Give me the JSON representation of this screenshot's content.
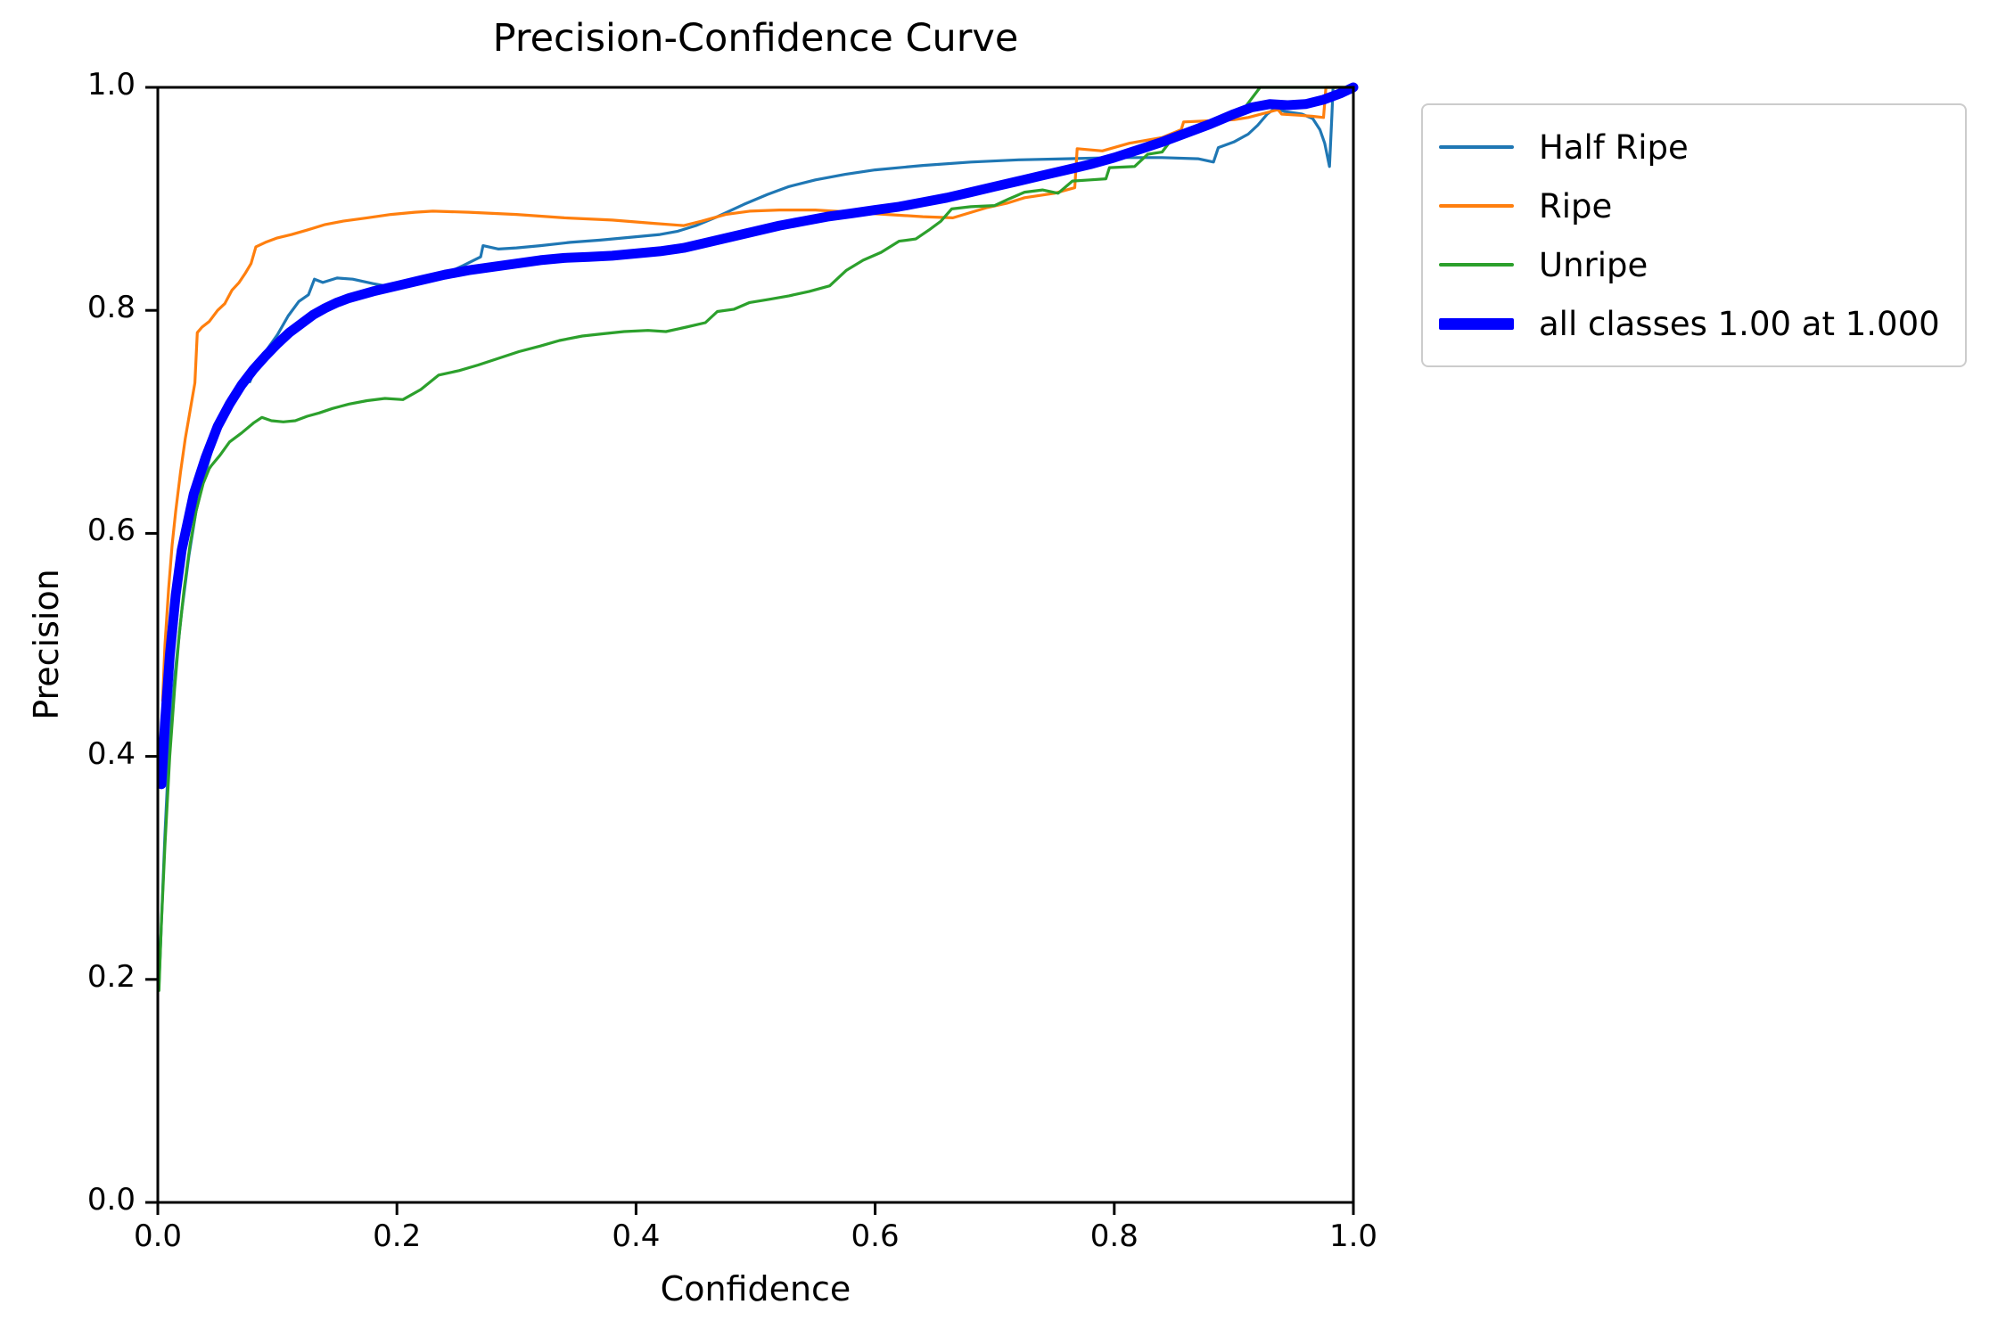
{
  "colors": {
    "half_ripe": "#1f77b4",
    "ripe": "#ff7f0e",
    "unripe": "#2ca02c",
    "all_classes": "#0000ff",
    "spine": "#000000",
    "legend_border": "#cccccc",
    "background": "#ffffff"
  },
  "chart_data": {
    "type": "line",
    "title": "Precision-Confidence Curve",
    "xlabel": "Confidence",
    "ylabel": "Precision",
    "xlim": [
      0.0,
      1.0
    ],
    "ylim": [
      0.0,
      1.0
    ],
    "grid": false,
    "x_tick_values": [
      0.0,
      0.2,
      0.4,
      0.6,
      0.8,
      1.0
    ],
    "x_tick_labels": [
      "0.0",
      "0.2",
      "0.4",
      "0.6",
      "0.8",
      "1.0"
    ],
    "y_tick_values": [
      0.0,
      0.2,
      0.4,
      0.6,
      0.8,
      1.0
    ],
    "y_tick_labels": [
      "0.0",
      "0.2",
      "0.4",
      "0.6",
      "0.8",
      "1.0"
    ],
    "legend": {
      "position": "upper-right-outside",
      "entries": [
        {
          "label": "Half Ripe",
          "color": "#1f77b4",
          "thick": false
        },
        {
          "label": "Ripe",
          "color": "#ff7f0e",
          "thick": false
        },
        {
          "label": "Unripe",
          "color": "#2ca02c",
          "thick": false
        },
        {
          "label": "all classes 1.00 at 1.000",
          "color": "#0000ff",
          "thick": true
        }
      ]
    },
    "series": [
      {
        "id": "half-ripe",
        "name": "Half Ripe",
        "color": "#1f77b4",
        "line_width": 3.2,
        "points": [
          [
            0.001,
            0.195
          ],
          [
            0.003,
            0.25
          ],
          [
            0.006,
            0.33
          ],
          [
            0.01,
            0.42
          ],
          [
            0.014,
            0.47
          ],
          [
            0.02,
            0.53
          ],
          [
            0.026,
            0.58
          ],
          [
            0.032,
            0.62
          ],
          [
            0.04,
            0.655
          ],
          [
            0.048,
            0.685
          ],
          [
            0.056,
            0.708
          ],
          [
            0.064,
            0.727
          ],
          [
            0.07,
            0.738
          ],
          [
            0.074,
            0.742
          ],
          [
            0.077,
            0.736
          ],
          [
            0.082,
            0.75
          ],
          [
            0.09,
            0.763
          ],
          [
            0.1,
            0.778
          ],
          [
            0.109,
            0.795
          ],
          [
            0.118,
            0.808
          ],
          [
            0.126,
            0.814
          ],
          [
            0.131,
            0.828
          ],
          [
            0.138,
            0.825
          ],
          [
            0.15,
            0.829
          ],
          [
            0.163,
            0.828
          ],
          [
            0.18,
            0.824
          ],
          [
            0.2,
            0.82
          ],
          [
            0.215,
            0.823
          ],
          [
            0.235,
            0.83
          ],
          [
            0.255,
            0.84
          ],
          [
            0.27,
            0.848
          ],
          [
            0.272,
            0.858
          ],
          [
            0.285,
            0.855
          ],
          [
            0.3,
            0.856
          ],
          [
            0.32,
            0.858
          ],
          [
            0.345,
            0.861
          ],
          [
            0.37,
            0.863
          ],
          [
            0.4,
            0.866
          ],
          [
            0.42,
            0.868
          ],
          [
            0.435,
            0.871
          ],
          [
            0.45,
            0.876
          ],
          [
            0.468,
            0.884
          ],
          [
            0.49,
            0.895
          ],
          [
            0.51,
            0.904
          ],
          [
            0.528,
            0.911
          ],
          [
            0.55,
            0.917
          ],
          [
            0.575,
            0.922
          ],
          [
            0.6,
            0.926
          ],
          [
            0.64,
            0.93
          ],
          [
            0.68,
            0.933
          ],
          [
            0.72,
            0.935
          ],
          [
            0.76,
            0.936
          ],
          [
            0.8,
            0.937
          ],
          [
            0.84,
            0.937
          ],
          [
            0.87,
            0.936
          ],
          [
            0.883,
            0.933
          ],
          [
            0.887,
            0.946
          ],
          [
            0.9,
            0.951
          ],
          [
            0.912,
            0.958
          ],
          [
            0.92,
            0.966
          ],
          [
            0.928,
            0.976
          ],
          [
            0.934,
            0.981
          ],
          [
            0.944,
            0.978
          ],
          [
            0.957,
            0.976
          ],
          [
            0.966,
            0.972
          ],
          [
            0.972,
            0.962
          ],
          [
            0.976,
            0.95
          ],
          [
            0.98,
            0.929
          ],
          [
            0.982,
            0.975
          ],
          [
            0.983,
            1.0
          ],
          [
            1.0,
            1.0
          ]
        ]
      },
      {
        "id": "ripe",
        "name": "Ripe",
        "color": "#ff7f0e",
        "line_width": 3.2,
        "points": [
          [
            0.004,
            0.45
          ],
          [
            0.006,
            0.5
          ],
          [
            0.009,
            0.55
          ],
          [
            0.012,
            0.59
          ],
          [
            0.015,
            0.62
          ],
          [
            0.019,
            0.655
          ],
          [
            0.023,
            0.685
          ],
          [
            0.027,
            0.71
          ],
          [
            0.031,
            0.735
          ],
          [
            0.033,
            0.78
          ],
          [
            0.037,
            0.785
          ],
          [
            0.043,
            0.79
          ],
          [
            0.05,
            0.8
          ],
          [
            0.056,
            0.806
          ],
          [
            0.062,
            0.818
          ],
          [
            0.068,
            0.825
          ],
          [
            0.073,
            0.833
          ],
          [
            0.078,
            0.842
          ],
          [
            0.082,
            0.857
          ],
          [
            0.09,
            0.861
          ],
          [
            0.1,
            0.865
          ],
          [
            0.112,
            0.868
          ],
          [
            0.125,
            0.872
          ],
          [
            0.14,
            0.877
          ],
          [
            0.155,
            0.88
          ],
          [
            0.175,
            0.883
          ],
          [
            0.195,
            0.886
          ],
          [
            0.215,
            0.888
          ],
          [
            0.23,
            0.889
          ],
          [
            0.26,
            0.888
          ],
          [
            0.3,
            0.886
          ],
          [
            0.34,
            0.883
          ],
          [
            0.38,
            0.881
          ],
          [
            0.415,
            0.878
          ],
          [
            0.44,
            0.876
          ],
          [
            0.455,
            0.88
          ],
          [
            0.475,
            0.886
          ],
          [
            0.495,
            0.889
          ],
          [
            0.52,
            0.89
          ],
          [
            0.55,
            0.89
          ],
          [
            0.58,
            0.888
          ],
          [
            0.61,
            0.886
          ],
          [
            0.64,
            0.884
          ],
          [
            0.665,
            0.883
          ],
          [
            0.693,
            0.892
          ],
          [
            0.71,
            0.896
          ],
          [
            0.725,
            0.901
          ],
          [
            0.75,
            0.905
          ],
          [
            0.767,
            0.91
          ],
          [
            0.769,
            0.945
          ],
          [
            0.79,
            0.943
          ],
          [
            0.813,
            0.95
          ],
          [
            0.84,
            0.955
          ],
          [
            0.856,
            0.962
          ],
          [
            0.858,
            0.969
          ],
          [
            0.88,
            0.97
          ],
          [
            0.9,
            0.971
          ],
          [
            0.912,
            0.973
          ],
          [
            0.93,
            0.978
          ],
          [
            0.937,
            0.98
          ],
          [
            0.94,
            0.976
          ],
          [
            0.955,
            0.975
          ],
          [
            0.966,
            0.974
          ],
          [
            0.975,
            0.973
          ],
          [
            0.977,
            1.0
          ],
          [
            1.0,
            1.0
          ]
        ]
      },
      {
        "id": "unripe",
        "name": "Unripe",
        "color": "#2ca02c",
        "line_width": 3.2,
        "points": [
          [
            0.001,
            0.19
          ],
          [
            0.003,
            0.25
          ],
          [
            0.006,
            0.32
          ],
          [
            0.01,
            0.4
          ],
          [
            0.014,
            0.46
          ],
          [
            0.018,
            0.51
          ],
          [
            0.022,
            0.55
          ],
          [
            0.027,
            0.59
          ],
          [
            0.032,
            0.62
          ],
          [
            0.038,
            0.645
          ],
          [
            0.043,
            0.658
          ],
          [
            0.045,
            0.661
          ],
          [
            0.052,
            0.67
          ],
          [
            0.06,
            0.682
          ],
          [
            0.07,
            0.69
          ],
          [
            0.08,
            0.699
          ],
          [
            0.087,
            0.704
          ],
          [
            0.095,
            0.701
          ],
          [
            0.105,
            0.7
          ],
          [
            0.115,
            0.701
          ],
          [
            0.125,
            0.705
          ],
          [
            0.135,
            0.708
          ],
          [
            0.146,
            0.712
          ],
          [
            0.16,
            0.716
          ],
          [
            0.175,
            0.719
          ],
          [
            0.19,
            0.721
          ],
          [
            0.205,
            0.72
          ],
          [
            0.22,
            0.729
          ],
          [
            0.235,
            0.742
          ],
          [
            0.252,
            0.746
          ],
          [
            0.268,
            0.751
          ],
          [
            0.285,
            0.757
          ],
          [
            0.302,
            0.763
          ],
          [
            0.32,
            0.768
          ],
          [
            0.336,
            0.773
          ],
          [
            0.355,
            0.777
          ],
          [
            0.372,
            0.779
          ],
          [
            0.39,
            0.781
          ],
          [
            0.41,
            0.782
          ],
          [
            0.425,
            0.781
          ],
          [
            0.442,
            0.785
          ],
          [
            0.458,
            0.789
          ],
          [
            0.468,
            0.799
          ],
          [
            0.482,
            0.801
          ],
          [
            0.495,
            0.807
          ],
          [
            0.512,
            0.81
          ],
          [
            0.528,
            0.813
          ],
          [
            0.545,
            0.817
          ],
          [
            0.562,
            0.822
          ],
          [
            0.576,
            0.836
          ],
          [
            0.59,
            0.845
          ],
          [
            0.605,
            0.852
          ],
          [
            0.62,
            0.862
          ],
          [
            0.634,
            0.864
          ],
          [
            0.645,
            0.872
          ],
          [
            0.655,
            0.88
          ],
          [
            0.664,
            0.891
          ],
          [
            0.68,
            0.893
          ],
          [
            0.7,
            0.894
          ],
          [
            0.712,
            0.9
          ],
          [
            0.725,
            0.906
          ],
          [
            0.74,
            0.908
          ],
          [
            0.753,
            0.905
          ],
          [
            0.765,
            0.916
          ],
          [
            0.78,
            0.917
          ],
          [
            0.793,
            0.918
          ],
          [
            0.796,
            0.928
          ],
          [
            0.817,
            0.929
          ],
          [
            0.828,
            0.94
          ],
          [
            0.84,
            0.942
          ],
          [
            0.85,
            0.956
          ],
          [
            0.862,
            0.957
          ],
          [
            0.877,
            0.969
          ],
          [
            0.9,
            0.973
          ],
          [
            0.91,
            0.983
          ],
          [
            0.922,
            1.0
          ],
          [
            1.0,
            1.0
          ]
        ]
      },
      {
        "id": "all-classes",
        "name": "all classes 1.00 at 1.000",
        "color": "#0000ff",
        "line_width": 11,
        "points": [
          [
            0.003,
            0.375
          ],
          [
            0.006,
            0.43
          ],
          [
            0.01,
            0.49
          ],
          [
            0.015,
            0.545
          ],
          [
            0.02,
            0.585
          ],
          [
            0.03,
            0.635
          ],
          [
            0.04,
            0.668
          ],
          [
            0.05,
            0.696
          ],
          [
            0.06,
            0.716
          ],
          [
            0.07,
            0.733
          ],
          [
            0.08,
            0.747
          ],
          [
            0.09,
            0.759
          ],
          [
            0.1,
            0.77
          ],
          [
            0.11,
            0.78
          ],
          [
            0.12,
            0.788
          ],
          [
            0.13,
            0.796
          ],
          [
            0.14,
            0.802
          ],
          [
            0.15,
            0.807
          ],
          [
            0.16,
            0.811
          ],
          [
            0.17,
            0.814
          ],
          [
            0.18,
            0.817
          ],
          [
            0.2,
            0.822
          ],
          [
            0.22,
            0.827
          ],
          [
            0.24,
            0.832
          ],
          [
            0.26,
            0.836
          ],
          [
            0.28,
            0.839
          ],
          [
            0.3,
            0.842
          ],
          [
            0.32,
            0.845
          ],
          [
            0.34,
            0.847
          ],
          [
            0.36,
            0.848
          ],
          [
            0.38,
            0.849
          ],
          [
            0.4,
            0.851
          ],
          [
            0.42,
            0.853
          ],
          [
            0.44,
            0.856
          ],
          [
            0.46,
            0.861
          ],
          [
            0.48,
            0.866
          ],
          [
            0.5,
            0.871
          ],
          [
            0.52,
            0.876
          ],
          [
            0.54,
            0.88
          ],
          [
            0.56,
            0.884
          ],
          [
            0.58,
            0.887
          ],
          [
            0.6,
            0.89
          ],
          [
            0.62,
            0.893
          ],
          [
            0.64,
            0.897
          ],
          [
            0.66,
            0.901
          ],
          [
            0.68,
            0.906
          ],
          [
            0.7,
            0.911
          ],
          [
            0.72,
            0.916
          ],
          [
            0.74,
            0.921
          ],
          [
            0.76,
            0.926
          ],
          [
            0.78,
            0.931
          ],
          [
            0.8,
            0.937
          ],
          [
            0.82,
            0.944
          ],
          [
            0.84,
            0.951
          ],
          [
            0.86,
            0.959
          ],
          [
            0.88,
            0.967
          ],
          [
            0.9,
            0.976
          ],
          [
            0.915,
            0.982
          ],
          [
            0.93,
            0.985
          ],
          [
            0.945,
            0.984
          ],
          [
            0.96,
            0.985
          ],
          [
            0.975,
            0.989
          ],
          [
            0.99,
            0.995
          ],
          [
            1.0,
            1.0
          ]
        ]
      }
    ]
  }
}
